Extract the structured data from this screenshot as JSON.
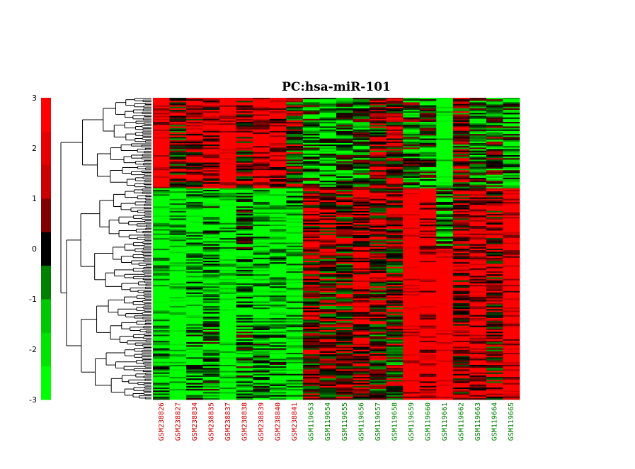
{
  "chart_data": {
    "type": "heatmap",
    "title": "PC:hsa-miR-101",
    "colorbar": {
      "ticks": [
        3,
        2,
        1,
        0,
        -1,
        -2,
        -3
      ],
      "range": [
        -3,
        3
      ],
      "colors": [
        "#00ff00",
        "#00e400",
        "#00c800",
        "#008000",
        "#000000",
        "#800000",
        "#c80000",
        "#e40000",
        "#ff0000"
      ]
    },
    "columns": [
      {
        "label": "GSM238826",
        "group": "red"
      },
      {
        "label": "GSM238827",
        "group": "red"
      },
      {
        "label": "GSM238834",
        "group": "red"
      },
      {
        "label": "GSM238835",
        "group": "red"
      },
      {
        "label": "GSM238837",
        "group": "red"
      },
      {
        "label": "GSM238838",
        "group": "red"
      },
      {
        "label": "GSM238839",
        "group": "red"
      },
      {
        "label": "GSM238840",
        "group": "red"
      },
      {
        "label": "GSM238841",
        "group": "red"
      },
      {
        "label": "GSM119653",
        "group": "green"
      },
      {
        "label": "GSM119654",
        "group": "green"
      },
      {
        "label": "GSM119655",
        "group": "green"
      },
      {
        "label": "GSM119656",
        "group": "green"
      },
      {
        "label": "GSM119657",
        "group": "green"
      },
      {
        "label": "GSM119658",
        "group": "green"
      },
      {
        "label": "GSM119659",
        "group": "green"
      },
      {
        "label": "GSM119660",
        "group": "green"
      },
      {
        "label": "GSM119661",
        "group": "green"
      },
      {
        "label": "GSM119662",
        "group": "green"
      },
      {
        "label": "GSM119663",
        "group": "green"
      },
      {
        "label": "GSM119664",
        "group": "green"
      },
      {
        "label": "GSM119665",
        "group": "green"
      }
    ],
    "group_colors": {
      "red": "#cc0000",
      "green": "#008000"
    },
    "row_blocks": [
      {
        "rows": 60,
        "means": [
          2.0,
          0.5,
          1.0,
          1.4,
          2.4,
          0.8,
          1.8,
          1.6,
          0.3,
          -0.8,
          -1.2,
          -0.8,
          -0.6,
          0.6,
          0.8,
          -0.3,
          -0.6,
          -2.4,
          0.3,
          -0.6,
          -0.3,
          -1.0
        ]
      },
      {
        "rows": 40,
        "means": [
          -2.0,
          -1.6,
          -1.6,
          -1.2,
          -1.8,
          -0.6,
          -1.8,
          -2.2,
          -1.6,
          0.9,
          0.9,
          0.5,
          1.2,
          0.9,
          0.6,
          2.0,
          1.7,
          -0.8,
          1.0,
          1.7,
          0.8,
          2.2
        ]
      },
      {
        "rows": 50,
        "means": [
          -2.0,
          -2.4,
          -1.6,
          -1.4,
          -2.4,
          -1.4,
          -1.8,
          -1.6,
          -1.8,
          0.6,
          0.3,
          0.5,
          1.2,
          0.5,
          0.4,
          2.5,
          2.0,
          2.8,
          1.0,
          1.8,
          0.8,
          2.0
        ]
      },
      {
        "rows": 50,
        "means": [
          -1.5,
          -2.4,
          -1.2,
          -1.0,
          -2.4,
          -0.8,
          -1.2,
          -1.2,
          -1.6,
          0.6,
          0.6,
          0.8,
          1.0,
          0.3,
          0.2,
          2.2,
          1.8,
          2.5,
          1.0,
          1.5,
          0.6,
          2.0
        ]
      }
    ]
  }
}
